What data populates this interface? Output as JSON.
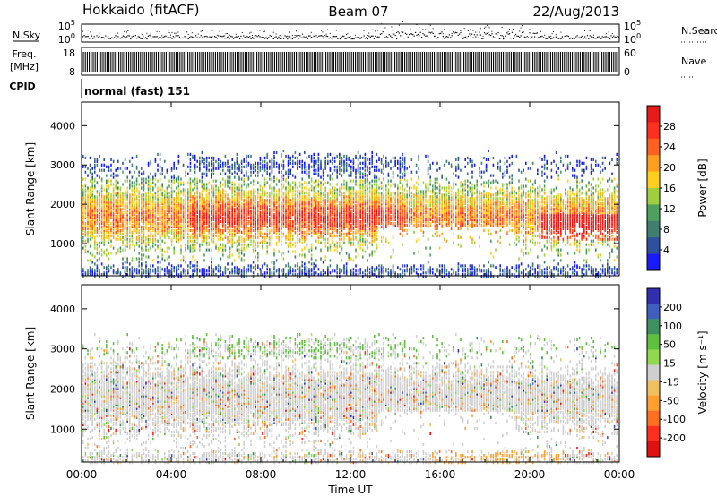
{
  "header": {
    "title": "Hokkaido (fitACF)",
    "beam": "Beam 07",
    "date": "22/Aug/2013"
  },
  "left_labels": {
    "nsky": "N.Sky",
    "freq_line1": "Freq.",
    "freq_line2": "[MHz]",
    "cpid": "CPID"
  },
  "right_labels": {
    "nsearch": "N.Search",
    "nave": "Nave"
  },
  "cpid_text": "normal (fast) 151",
  "colors": {
    "noise_points": "#000000",
    "power_scale": [
      "#1a1aff",
      "#2f4f9f",
      "#3f7f6f",
      "#4f9f5f",
      "#9fcf3f",
      "#ffcf1f",
      "#ff9f1f",
      "#ff5f1f",
      "#ff2f1f",
      "#e61a1a"
    ],
    "velocity_scale": [
      "#2f2fb0",
      "#3f5fbf",
      "#3f8f5f",
      "#5fbf3f",
      "#8fd84f",
      "#cfcfcf",
      "#f0c060",
      "#ff9f2f",
      "#ff6f1f",
      "#ff2f1f",
      "#e01010"
    ]
  },
  "chart_data": [
    {
      "type": "scatter",
      "panel": "N.Sky / N.Search noise",
      "x_ticks": [
        "00:00",
        "04:00",
        "08:00",
        "12:00",
        "16:00",
        "20:00",
        "00:00"
      ],
      "left_axis_ticks": [
        "10^5",
        "10^0"
      ],
      "right_axis_ticks": [
        "10^5",
        "10^0"
      ],
      "left_series": "N.Sky",
      "right_series": "N.Search"
    },
    {
      "type": "line",
      "panel": "Freq / Nave",
      "left_axis_label": "Freq. [MHz]",
      "left_axis_ticks": [
        "18",
        "8"
      ],
      "ylim_left": [
        8,
        18
      ],
      "right_axis_ticks": [
        "60",
        "0"
      ],
      "ylim_right": [
        0,
        60
      ],
      "right_series": "Nave"
    },
    {
      "type": "table",
      "panel": "CPID",
      "value": "normal (fast) 151"
    },
    {
      "type": "heatmap",
      "panel": "Power",
      "xlabel": "",
      "ylabel": "Slant Range [km]",
      "x_ticks": [
        "00:00",
        "04:00",
        "08:00",
        "12:00",
        "16:00",
        "20:00",
        "00:00"
      ],
      "y_ticks": [
        "1000",
        "2000",
        "3000",
        "4000"
      ],
      "ylim": [
        180,
        4600
      ],
      "colorbar_label": "Power [dB]",
      "colorbar_ticks": [
        "4",
        "8",
        "12",
        "16",
        "20",
        "24",
        "28"
      ],
      "colorbar_range": [
        0,
        32
      ]
    },
    {
      "type": "heatmap",
      "panel": "Velocity",
      "xlabel": "Time UT",
      "ylabel": "Slant Range [km]",
      "x_ticks": [
        "00:00",
        "04:00",
        "08:00",
        "12:00",
        "16:00",
        "20:00",
        "00:00"
      ],
      "y_ticks": [
        "1000",
        "2000",
        "3000",
        "4000"
      ],
      "ylim": [
        180,
        4600
      ],
      "colorbar_label": "Velocity [m s^-1]",
      "colorbar_ticks": [
        "200",
        "100",
        "50",
        "15",
        "-15",
        "-50",
        "-100",
        "-200"
      ]
    }
  ]
}
